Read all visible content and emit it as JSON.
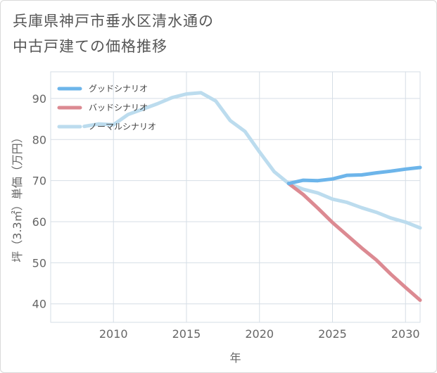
{
  "title_line1": "兵庫県神戸市垂水区清水通の",
  "title_line2": "中古戸建ての価格推移",
  "chart_data": {
    "type": "line",
    "xlabel": "年",
    "ylabel": "坪（3.3㎡）単価（万円）",
    "xlim": [
      2005.7,
      2031
    ],
    "ylim": [
      35.5,
      96.5
    ],
    "x_ticks": [
      2010,
      2015,
      2020,
      2025,
      2030
    ],
    "y_ticks": [
      40,
      50,
      60,
      70,
      80,
      90
    ],
    "grid": true,
    "legend_position": "top-left",
    "series": [
      {
        "name": "グッドシナリオ",
        "color": "#6db5ea",
        "points": [
          [
            2022,
            69.3
          ],
          [
            2023,
            70.1
          ],
          [
            2024,
            70.0
          ],
          [
            2025,
            70.4
          ],
          [
            2026,
            71.3
          ],
          [
            2027,
            71.4
          ],
          [
            2028,
            71.9
          ],
          [
            2029,
            72.3
          ],
          [
            2030,
            72.8
          ],
          [
            2031,
            73.2
          ]
        ]
      },
      {
        "name": "バッドシナリオ",
        "color": "#dc8a92",
        "points": [
          [
            2022,
            69.3
          ],
          [
            2023,
            66.6
          ],
          [
            2024,
            63.3
          ],
          [
            2025,
            59.8
          ],
          [
            2026,
            56.7
          ],
          [
            2027,
            53.6
          ],
          [
            2028,
            50.7
          ],
          [
            2029,
            47.2
          ],
          [
            2030,
            44.0
          ],
          [
            2031,
            40.9
          ]
        ]
      },
      {
        "name": "ノーマルシナリオ",
        "color": "#bcdcee",
        "points": [
          [
            2008,
            83.2
          ],
          [
            2009,
            83.8
          ],
          [
            2010,
            83.6
          ],
          [
            2011,
            86.1
          ],
          [
            2012,
            87.4
          ],
          [
            2013,
            88.7
          ],
          [
            2014,
            90.2
          ],
          [
            2015,
            91.1
          ],
          [
            2016,
            91.4
          ],
          [
            2017,
            89.4
          ],
          [
            2018,
            84.6
          ],
          [
            2019,
            82.0
          ],
          [
            2020,
            77.0
          ],
          [
            2021,
            72.2
          ],
          [
            2022,
            69.3
          ],
          [
            2023,
            67.9
          ],
          [
            2024,
            67.0
          ],
          [
            2025,
            65.5
          ],
          [
            2026,
            64.7
          ],
          [
            2027,
            63.4
          ],
          [
            2028,
            62.3
          ],
          [
            2029,
            60.9
          ],
          [
            2030,
            59.9
          ],
          [
            2031,
            58.5
          ]
        ]
      }
    ]
  }
}
